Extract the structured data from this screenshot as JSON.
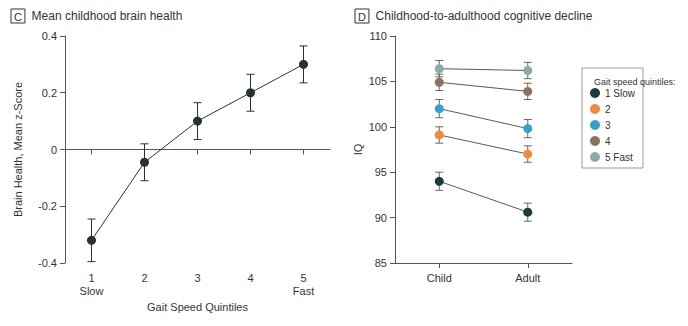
{
  "chart_data": [
    {
      "type": "line",
      "panel": "C",
      "title": "Mean childhood brain health",
      "x_label": "Gait Speed Quintiles",
      "y_label": "Brain Health, Mean z-Score",
      "categories": [
        "1\nSlow",
        "2",
        "3",
        "4",
        "5\nFast"
      ],
      "values": [
        -0.32,
        -0.045,
        0.1,
        0.2,
        0.3
      ],
      "errors": [
        0.075,
        0.065,
        0.065,
        0.065,
        0.065
      ],
      "color": "#263238",
      "marker": "circle",
      "ylim": [
        -0.4,
        0.4
      ],
      "yticks": [
        -0.4,
        -0.2,
        0,
        0.2,
        0.4
      ],
      "grid": false
    },
    {
      "type": "line",
      "panel": "D",
      "title": "Childhood-to-adulthood cognitive decline",
      "y_label": "IQ",
      "categories": [
        "Child",
        "Adult"
      ],
      "series": [
        {
          "name": "1 Slow",
          "color": "#1f3b40",
          "values": [
            94,
            90.6
          ],
          "errors": [
            1.0,
            1.0
          ]
        },
        {
          "name": "2",
          "color": "#f08a3c",
          "values": [
            99.1,
            97
          ],
          "errors": [
            0.9,
            0.9
          ]
        },
        {
          "name": "3",
          "color": "#3aa0c8",
          "values": [
            102,
            99.8
          ],
          "errors": [
            1.0,
            1.0
          ]
        },
        {
          "name": "4",
          "color": "#8a7262",
          "values": [
            104.9,
            103.9
          ],
          "errors": [
            0.9,
            0.9
          ]
        },
        {
          "name": "5 Fast",
          "color": "#8fa9aa",
          "values": [
            106.4,
            106.2
          ],
          "errors": [
            0.9,
            0.9
          ]
        }
      ],
      "marker": "circle",
      "legend": "right",
      "legend_title": "Gait speed quintiles:",
      "ylim": [
        85,
        110
      ],
      "yticks": [
        85,
        90,
        95,
        100,
        105,
        110
      ],
      "grid": false
    }
  ]
}
